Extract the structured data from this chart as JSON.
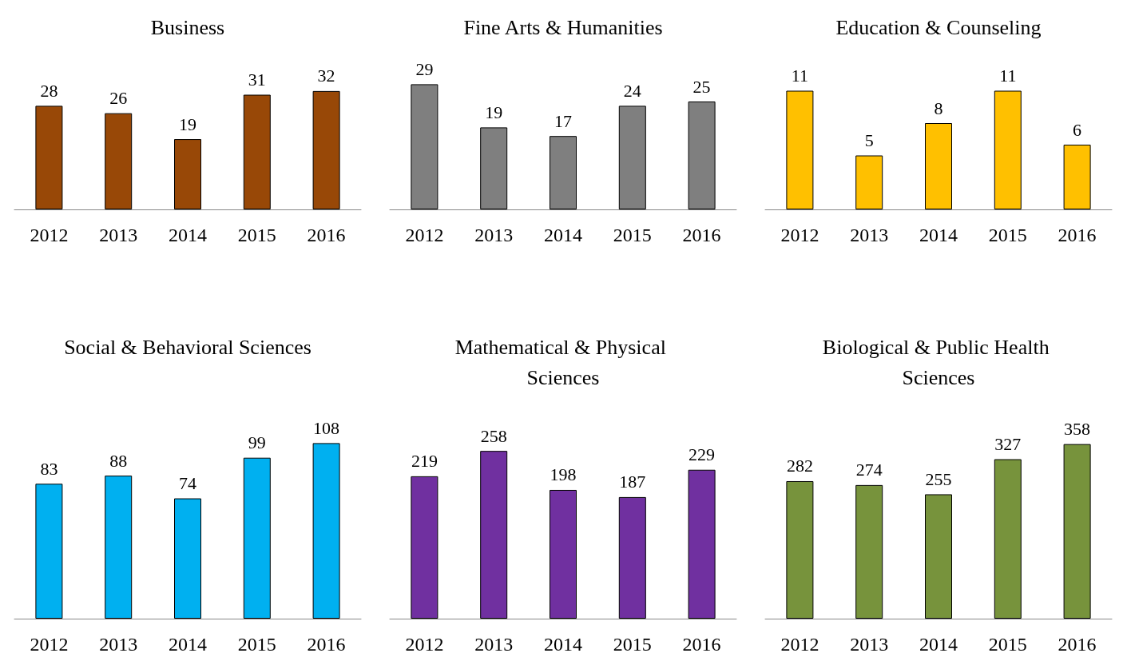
{
  "chart_data": [
    {
      "type": "bar",
      "title": "Business",
      "categories": [
        "2012",
        "2013",
        "2014",
        "2015",
        "2016"
      ],
      "values": [
        28,
        26,
        19,
        31,
        32
      ],
      "color": "#984807",
      "data_labels": true
    },
    {
      "type": "bar",
      "title": "Fine Arts & Humanities",
      "categories": [
        "2012",
        "2013",
        "2014",
        "2015",
        "2016"
      ],
      "values": [
        29,
        19,
        17,
        24,
        25
      ],
      "color": "#7f7f7f",
      "data_labels": true
    },
    {
      "type": "bar",
      "title": "Education & Counseling",
      "categories": [
        "2012",
        "2013",
        "2014",
        "2015",
        "2016"
      ],
      "values": [
        11,
        5,
        8,
        11,
        6
      ],
      "color": "#ffc000",
      "data_labels": true
    },
    {
      "type": "bar",
      "title": "Social & Behavioral Sciences",
      "categories": [
        "2012",
        "2013",
        "2014",
        "2015",
        "2016"
      ],
      "values": [
        83,
        88,
        74,
        99,
        108
      ],
      "color": "#00b0f0",
      "data_labels": true
    },
    {
      "type": "bar",
      "title": "Mathematical & Physical Sciences",
      "categories": [
        "2012",
        "2013",
        "2014",
        "2015",
        "2016"
      ],
      "values": [
        219,
        258,
        198,
        187,
        229
      ],
      "color": "#7030a0",
      "data_labels": true
    },
    {
      "type": "bar",
      "title": "Biological & Public Health Sciences",
      "categories": [
        "2012",
        "2013",
        "2014",
        "2015",
        "2016"
      ],
      "values": [
        282,
        274,
        255,
        327,
        358
      ],
      "color": "#77933c",
      "data_labels": true
    }
  ]
}
